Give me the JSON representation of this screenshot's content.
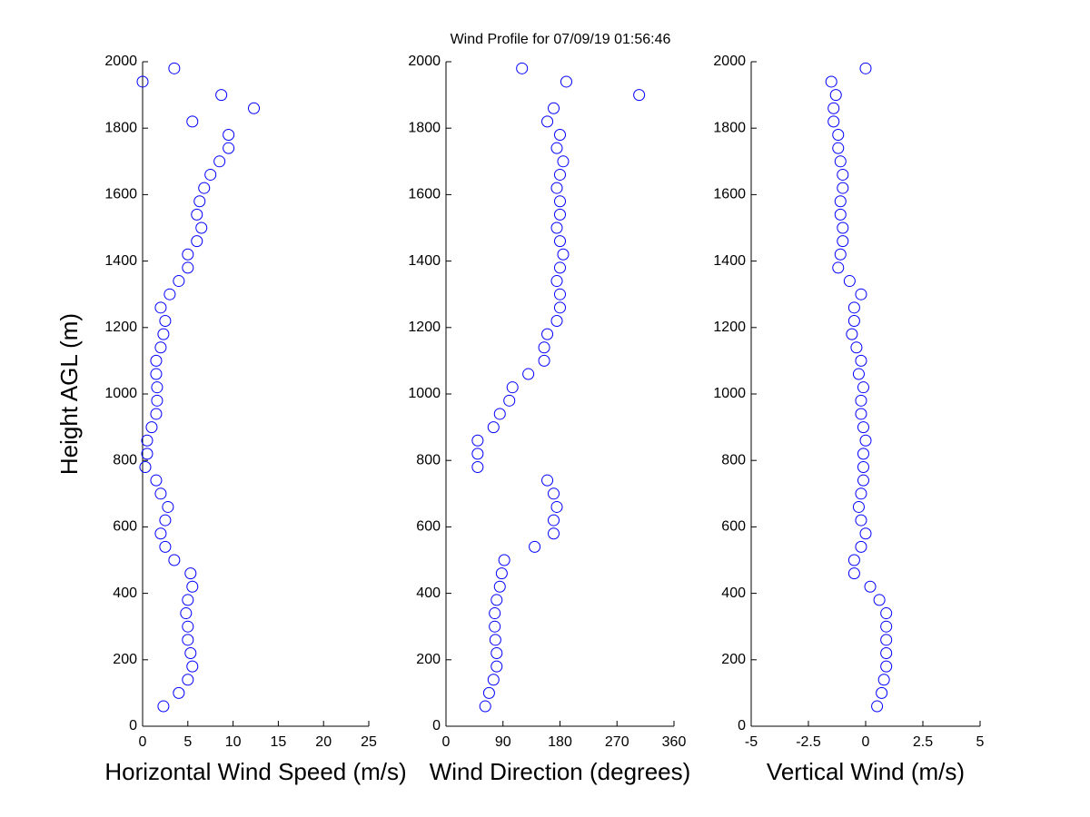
{
  "chart_data": [
    {
      "type": "scatter",
      "xlabel": "Horizontal Wind Speed (m/s)",
      "ylabel": "Height AGL (m)",
      "color": "#0000ff",
      "x": [
        2.3,
        4,
        5,
        5.5,
        5.3,
        5,
        5,
        4.8,
        5,
        5.5,
        5.3,
        3.5,
        2.5,
        2,
        2.5,
        2.8,
        2,
        1.5,
        0.3,
        0.5,
        0.5,
        1,
        1.5,
        1.6,
        1.6,
        1.5,
        1.5,
        2,
        2.3,
        2.5,
        2,
        3,
        4,
        5,
        5,
        6,
        6.5,
        6,
        6.3,
        6.8,
        7.5,
        8.5,
        9.5,
        9.5,
        5.5,
        12.3,
        8.7,
        0,
        3.5
      ],
      "values": [
        60,
        100,
        140,
        180,
        220,
        260,
        300,
        340,
        380,
        420,
        460,
        500,
        540,
        580,
        620,
        660,
        700,
        740,
        780,
        820,
        860,
        900,
        940,
        980,
        1020,
        1060,
        1100,
        1140,
        1180,
        1220,
        1260,
        1300,
        1340,
        1380,
        1420,
        1460,
        1500,
        1540,
        1580,
        1620,
        1660,
        1700,
        1740,
        1780,
        1820,
        1860,
        1900,
        1940,
        1980
      ],
      "xlim": [
        0,
        25
      ],
      "xticks": [
        0,
        5,
        10,
        15,
        20,
        25
      ],
      "ylim": [
        0,
        2000
      ],
      "yticks": [
        0,
        200,
        400,
        600,
        800,
        1000,
        1200,
        1400,
        1600,
        1800,
        2000
      ]
    },
    {
      "type": "scatter",
      "title": "Wind Profile for  07/09/19 01:56:46",
      "xlabel": "Wind Direction (degrees)",
      "color": "#0000ff",
      "x": [
        62,
        68,
        75,
        80,
        80,
        78,
        77,
        77,
        80,
        85,
        88,
        92,
        140,
        170,
        170,
        175,
        170,
        160,
        50,
        50,
        50,
        75,
        85,
        100,
        105,
        130,
        155,
        155,
        160,
        175,
        180,
        180,
        175,
        180,
        185,
        180,
        175,
        180,
        180,
        175,
        180,
        185,
        175,
        180,
        160,
        170,
        305,
        190,
        120
      ],
      "values": [
        60,
        100,
        140,
        180,
        220,
        260,
        300,
        340,
        380,
        420,
        460,
        500,
        540,
        580,
        620,
        660,
        700,
        740,
        780,
        820,
        860,
        900,
        940,
        980,
        1020,
        1060,
        1100,
        1140,
        1180,
        1220,
        1260,
        1300,
        1340,
        1380,
        1420,
        1460,
        1500,
        1540,
        1580,
        1620,
        1660,
        1700,
        1740,
        1780,
        1820,
        1860,
        1900,
        1940,
        1980
      ],
      "xlim": [
        0,
        360
      ],
      "xticks": [
        0,
        90,
        180,
        270,
        360
      ],
      "ylim": [
        0,
        2000
      ],
      "yticks": [
        0,
        200,
        400,
        600,
        800,
        1000,
        1200,
        1400,
        1600,
        1800,
        2000
      ]
    },
    {
      "type": "scatter",
      "xlabel": "Vertical Wind (m/s)",
      "color": "#0000ff",
      "x": [
        0.5,
        0.7,
        0.8,
        0.9,
        0.9,
        0.9,
        0.9,
        0.9,
        0.6,
        0.2,
        -0.5,
        -0.5,
        -0.2,
        0,
        -0.2,
        -0.3,
        -0.2,
        -0.1,
        -0.1,
        -0.1,
        0,
        -0.1,
        -0.2,
        -0.2,
        -0.1,
        -0.3,
        -0.2,
        -0.4,
        -0.6,
        -0.5,
        -0.5,
        -0.2,
        -0.7,
        -1.2,
        -1.1,
        -1,
        -1,
        -1.1,
        -1.1,
        -1,
        -1,
        -1.1,
        -1.2,
        -1.2,
        -1.4,
        -1.4,
        -1.3,
        -1.5,
        0
      ],
      "values": [
        60,
        100,
        140,
        180,
        220,
        260,
        300,
        340,
        380,
        420,
        460,
        500,
        540,
        580,
        620,
        660,
        700,
        740,
        780,
        820,
        860,
        900,
        940,
        980,
        1020,
        1060,
        1100,
        1140,
        1180,
        1220,
        1260,
        1300,
        1340,
        1380,
        1420,
        1460,
        1500,
        1540,
        1580,
        1620,
        1660,
        1700,
        1740,
        1780,
        1820,
        1860,
        1900,
        1940,
        1980
      ],
      "xlim": [
        -5,
        5
      ],
      "xticks": [
        -5,
        -2.5,
        0,
        2.5,
        5
      ],
      "ylim": [
        0,
        2000
      ],
      "yticks": [
        0,
        200,
        400,
        600,
        800,
        1000,
        1200,
        1400,
        1600,
        1800,
        2000
      ]
    }
  ]
}
